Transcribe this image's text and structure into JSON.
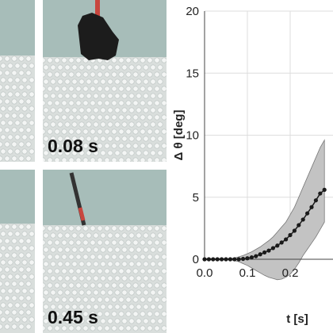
{
  "photos": {
    "panel_top_right": {
      "timestamp": "0.08 s"
    },
    "panel_bottom_right": {
      "timestamp": "0.45 s"
    }
  },
  "colors": {
    "aquarium_water": "#a7bdb9",
    "granular_media": "#d9dedc",
    "band": "#c3c3c3",
    "line": "#1a1a1a",
    "probe_red": "#c8463e"
  },
  "chart_data": {
    "type": "line",
    "xlabel": "t [s]",
    "ylabel": "Δ θ [deg]",
    "xlim": [
      0.0,
      0.3
    ],
    "ylim": [
      0,
      20
    ],
    "xticks": [
      "0.0",
      "0.1",
      "0.2"
    ],
    "yticks": [
      "0",
      "5",
      "10",
      "15",
      "20"
    ],
    "grid": true,
    "x": [
      0.0,
      0.01,
      0.02,
      0.03,
      0.04,
      0.05,
      0.06,
      0.07,
      0.08,
      0.09,
      0.1,
      0.11,
      0.12,
      0.13,
      0.14,
      0.15,
      0.16,
      0.17,
      0.18,
      0.19,
      0.2,
      0.21,
      0.22,
      0.23,
      0.24,
      0.25,
      0.26,
      0.27,
      0.28
    ],
    "values": [
      0.0,
      0.0,
      0.0,
      0.0,
      0.0,
      0.0,
      0.0,
      0.0,
      0.0,
      0.03,
      0.08,
      0.15,
      0.25,
      0.4,
      0.55,
      0.7,
      0.9,
      1.1,
      1.35,
      1.6,
      1.95,
      2.3,
      2.75,
      3.2,
      3.7,
      4.2,
      4.75,
      5.3,
      5.6
    ],
    "band_upper": [
      0.05,
      0.05,
      0.05,
      0.05,
      0.05,
      0.05,
      0.05,
      0.1,
      0.2,
      0.3,
      0.45,
      0.6,
      0.8,
      1.0,
      1.25,
      1.5,
      1.8,
      2.2,
      2.6,
      3.0,
      3.6,
      4.2,
      5.0,
      5.8,
      6.6,
      7.4,
      8.2,
      9.0,
      9.6
    ],
    "band_lower": [
      -0.05,
      -0.05,
      -0.05,
      -0.05,
      -0.05,
      -0.05,
      -0.05,
      -0.1,
      -0.2,
      -0.35,
      -0.5,
      -0.7,
      -0.9,
      -1.1,
      -1.3,
      -1.45,
      -1.55,
      -1.65,
      -1.6,
      -1.45,
      -1.2,
      -0.8,
      -0.3,
      0.3,
      0.8,
      1.3,
      1.8,
      2.4,
      3.0
    ]
  }
}
